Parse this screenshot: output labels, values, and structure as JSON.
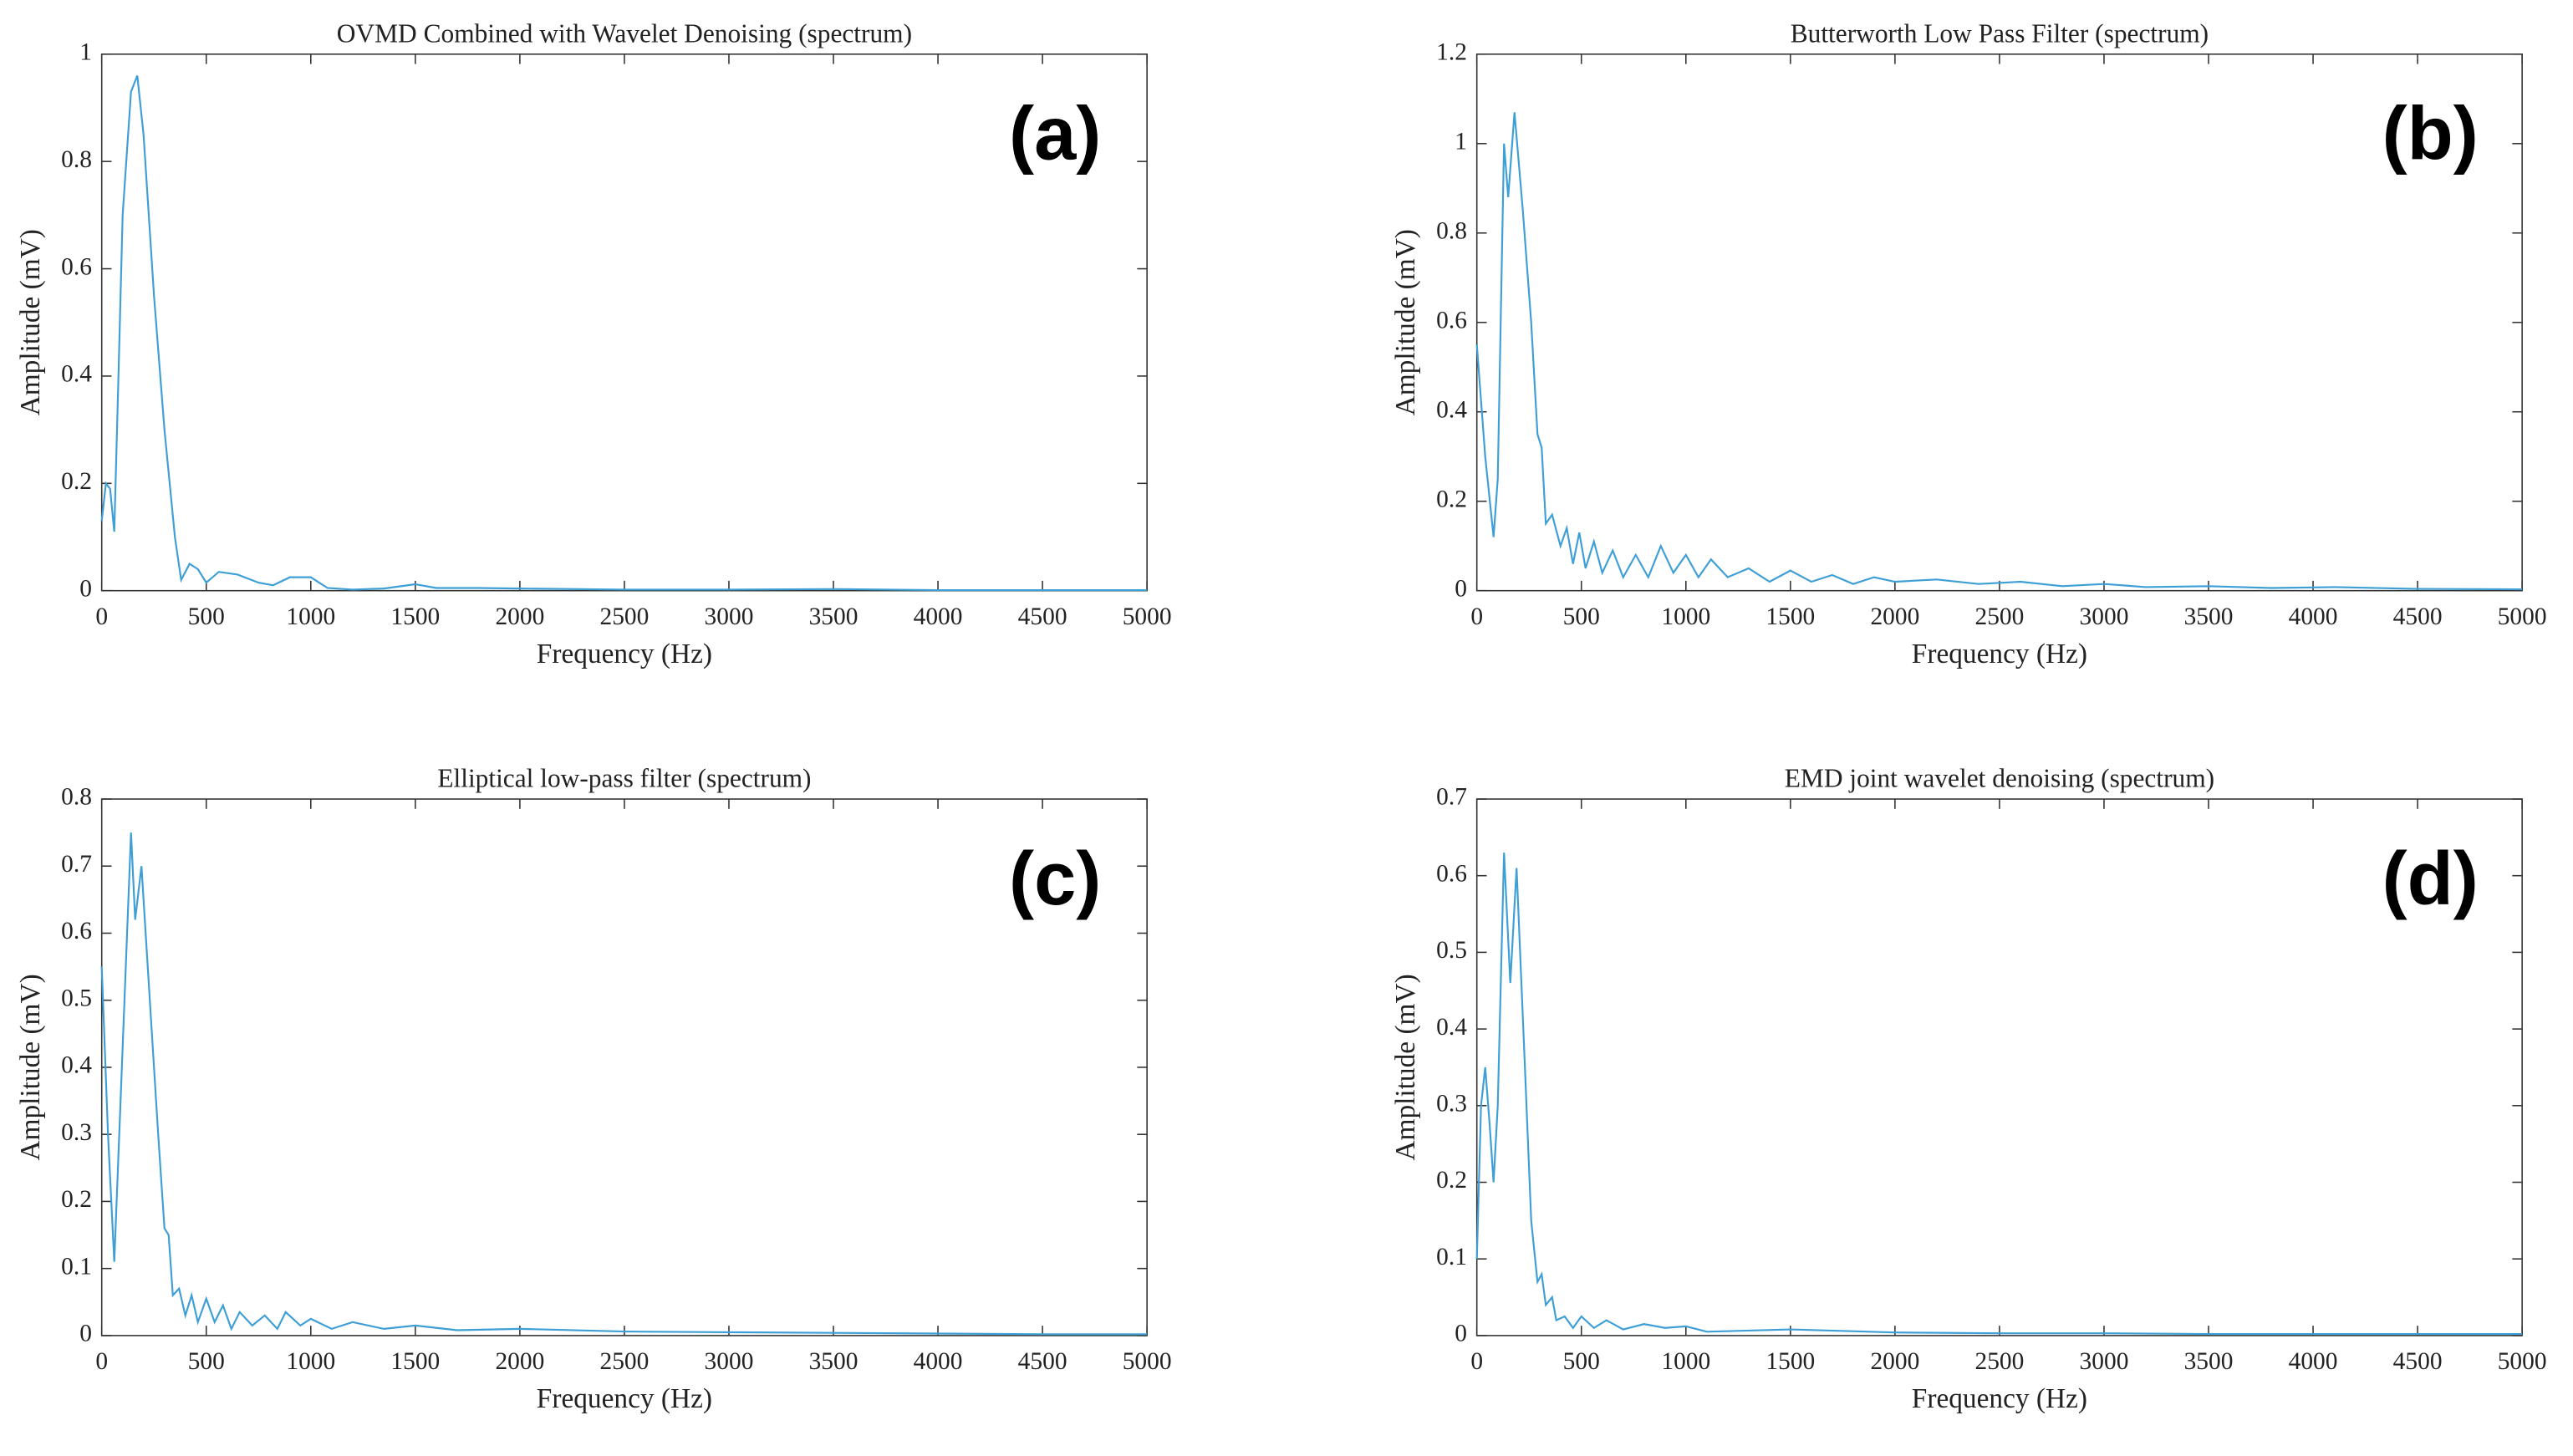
{
  "chart_data": [
    {
      "type": "line",
      "title": "OVMD Combined with Wavelet Denoising (spectrum)",
      "xlabel": "Frequency (Hz)",
      "ylabel": "Amplitude (mV)",
      "annotation": "(a)",
      "x": [
        0,
        20,
        40,
        60,
        80,
        100,
        140,
        170,
        200,
        250,
        300,
        350,
        380,
        420,
        460,
        500,
        560,
        650,
        750,
        820,
        900,
        1000,
        1080,
        1200,
        1350,
        1500,
        1600,
        1800,
        2000,
        2500,
        3000,
        3500,
        4000,
        4500,
        5000
      ],
      "series": [
        {
          "name": "OVMD Combined with Wavelet Denoising",
          "color": "#3d9fd6",
          "values": [
            0.13,
            0.2,
            0.19,
            0.11,
            0.4,
            0.7,
            0.93,
            0.96,
            0.85,
            0.55,
            0.3,
            0.1,
            0.02,
            0.05,
            0.04,
            0.015,
            0.035,
            0.03,
            0.015,
            0.01,
            0.025,
            0.025,
            0.005,
            0.002,
            0.004,
            0.012,
            0.005,
            0.005,
            0.004,
            0.002,
            0.002,
            0.003,
            0.001,
            0.001,
            0.001
          ]
        }
      ],
      "xlim": [
        0,
        5000
      ],
      "xticks": [
        0,
        500,
        1000,
        1500,
        2000,
        2500,
        3000,
        3500,
        4000,
        4500,
        5000
      ],
      "ylim": [
        0,
        1
      ],
      "yticks": [
        0,
        0.2,
        0.4,
        0.6,
        0.8,
        1
      ]
    },
    {
      "type": "line",
      "title": "Butterworth Low Pass Filter  (spectrum)",
      "xlabel": "Frequency (Hz)",
      "ylabel": "Amplitude (mV)",
      "annotation": "(b)",
      "x": [
        0,
        40,
        80,
        100,
        130,
        150,
        180,
        220,
        260,
        290,
        310,
        330,
        360,
        400,
        430,
        460,
        490,
        520,
        560,
        600,
        650,
        700,
        760,
        820,
        880,
        940,
        1000,
        1060,
        1120,
        1200,
        1300,
        1400,
        1500,
        1600,
        1700,
        1800,
        1900,
        2000,
        2200,
        2400,
        2600,
        2800,
        3000,
        3200,
        3500,
        3800,
        4100,
        4500,
        5000
      ],
      "series": [
        {
          "name": "Butterworth Low Pass Filter",
          "color": "#3d9fd6",
          "values": [
            0.55,
            0.3,
            0.12,
            0.25,
            1.0,
            0.88,
            1.07,
            0.85,
            0.6,
            0.35,
            0.32,
            0.15,
            0.17,
            0.1,
            0.14,
            0.06,
            0.13,
            0.05,
            0.11,
            0.04,
            0.09,
            0.03,
            0.08,
            0.03,
            0.1,
            0.04,
            0.08,
            0.03,
            0.07,
            0.03,
            0.05,
            0.02,
            0.045,
            0.02,
            0.035,
            0.015,
            0.03,
            0.02,
            0.025,
            0.015,
            0.02,
            0.01,
            0.015,
            0.008,
            0.01,
            0.006,
            0.008,
            0.004,
            0.003
          ]
        }
      ],
      "xlim": [
        0,
        5000
      ],
      "xticks": [
        0,
        500,
        1000,
        1500,
        2000,
        2500,
        3000,
        3500,
        4000,
        4500,
        5000
      ],
      "ylim": [
        0,
        1.2
      ],
      "yticks": [
        0,
        0.2,
        0.4,
        0.6,
        0.8,
        1,
        1.2
      ]
    },
    {
      "type": "line",
      "title": "Elliptical low-pass filter (spectrum)",
      "xlabel": "Frequency (Hz)",
      "ylabel": "Amplitude (mV)",
      "annotation": "(c)",
      "x": [
        0,
        30,
        60,
        90,
        140,
        160,
        190,
        230,
        270,
        300,
        320,
        340,
        370,
        400,
        430,
        460,
        500,
        540,
        580,
        620,
        660,
        720,
        780,
        840,
        880,
        950,
        1000,
        1100,
        1200,
        1350,
        1500,
        1700,
        2000,
        2500,
        3000,
        3500,
        4000,
        4500,
        5000
      ],
      "series": [
        {
          "name": "Elliptical low-pass filter",
          "color": "#3d9fd6",
          "values": [
            0.55,
            0.3,
            0.11,
            0.35,
            0.75,
            0.62,
            0.7,
            0.5,
            0.3,
            0.16,
            0.15,
            0.06,
            0.07,
            0.03,
            0.06,
            0.02,
            0.055,
            0.02,
            0.045,
            0.01,
            0.035,
            0.015,
            0.03,
            0.01,
            0.035,
            0.015,
            0.025,
            0.01,
            0.02,
            0.01,
            0.015,
            0.008,
            0.01,
            0.006,
            0.005,
            0.004,
            0.003,
            0.002,
            0.002
          ]
        }
      ],
      "xlim": [
        0,
        5000
      ],
      "xticks": [
        0,
        500,
        1000,
        1500,
        2000,
        2500,
        3000,
        3500,
        4000,
        4500,
        5000
      ],
      "ylim": [
        0,
        0.8
      ],
      "yticks": [
        0,
        0.1,
        0.2,
        0.3,
        0.4,
        0.5,
        0.6,
        0.7,
        0.8
      ]
    },
    {
      "type": "line",
      "title": "EMD joint wavelet denoising (spectrum)",
      "xlabel": "Frequency (Hz)",
      "ylabel": "Amplitude (mV)",
      "annotation": "(d)",
      "x": [
        0,
        20,
        40,
        60,
        80,
        100,
        130,
        160,
        190,
        230,
        260,
        290,
        310,
        330,
        360,
        380,
        420,
        460,
        500,
        560,
        620,
        700,
        800,
        900,
        1000,
        1100,
        1500,
        2000,
        2500,
        3000,
        3500,
        4000,
        4500,
        5000
      ],
      "series": [
        {
          "name": "EMD joint wavelet denoising",
          "color": "#3d9fd6",
          "values": [
            0.1,
            0.3,
            0.35,
            0.28,
            0.2,
            0.3,
            0.63,
            0.46,
            0.61,
            0.35,
            0.15,
            0.07,
            0.08,
            0.04,
            0.05,
            0.02,
            0.025,
            0.01,
            0.025,
            0.01,
            0.02,
            0.008,
            0.015,
            0.01,
            0.012,
            0.005,
            0.008,
            0.004,
            0.003,
            0.003,
            0.002,
            0.002,
            0.002,
            0.002
          ]
        }
      ],
      "xlim": [
        0,
        5000
      ],
      "xticks": [
        0,
        500,
        1000,
        1500,
        2000,
        2500,
        3000,
        3500,
        4000,
        4500,
        5000
      ],
      "ylim": [
        0,
        0.7
      ],
      "yticks": [
        0,
        0.1,
        0.2,
        0.3,
        0.4,
        0.5,
        0.6,
        0.7
      ]
    }
  ]
}
